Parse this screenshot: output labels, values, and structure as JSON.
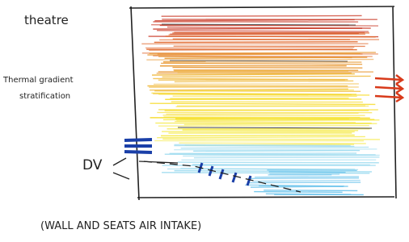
{
  "labels": {
    "title": "theatre",
    "stratification": [
      "Thermal gradient",
      "stratification"
    ],
    "dv": "DV",
    "caption": "(WALL AND SEATS AIR INTAKE)"
  }
}
